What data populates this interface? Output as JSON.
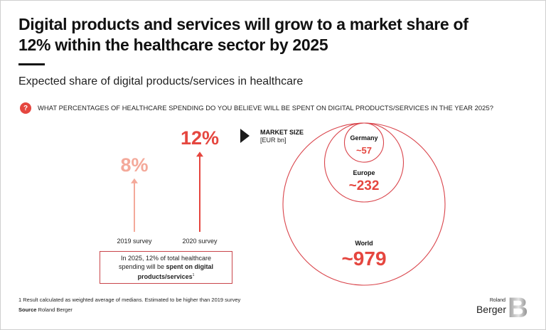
{
  "header": {
    "title": "Digital products and services will grow to a market share of 12% within the healthcare sector by 2025",
    "subtitle": "Expected share of digital products/services in healthcare",
    "question_icon": "question-mark-icon",
    "question_icon_glyph": "?",
    "question": "WHAT PERCENTAGES OF HEALTHCARE SPENDING DO YOU BELIEVE WILL BE SPENT ON DIGITAL PRODUCTS/SERVICES IN THE YEAR 2025?"
  },
  "colors": {
    "accent": "#e5463f",
    "light_accent": "#f4a99a",
    "circle_stroke": "#d9434a"
  },
  "note": {
    "text_plain": "In 2025, 12% of total healthcare spending will be ",
    "text_bold": "spent on digital products/services",
    "superscript": "1"
  },
  "market": {
    "arrow_icon": "triangle-right-icon",
    "title": "MARKET SIZE",
    "unit": "[EUR bn]"
  },
  "footer": {
    "footnote": "1 Result calculated as weighted average of medians. Estimated to be higher than 2019 survey",
    "source_label": "Source",
    "source_value": "Roland Berger"
  },
  "logo": {
    "small": "Roland",
    "big": "Berger",
    "mark": "B"
  },
  "chart_data": [
    {
      "type": "bar",
      "title": "Expected share of digital products/services in healthcare",
      "categories": [
        "2019 survey",
        "2020 survey"
      ],
      "values": [
        8,
        12
      ],
      "value_labels": [
        "8%",
        "12%"
      ],
      "unit": "%"
    },
    {
      "type": "nested-circles",
      "title": "MARKET SIZE",
      "unit": "EUR bn",
      "categories": [
        "Germany",
        "Europe",
        "World"
      ],
      "values": [
        57,
        232,
        979
      ],
      "value_labels": [
        "~57",
        "~232",
        "~979"
      ]
    }
  ]
}
